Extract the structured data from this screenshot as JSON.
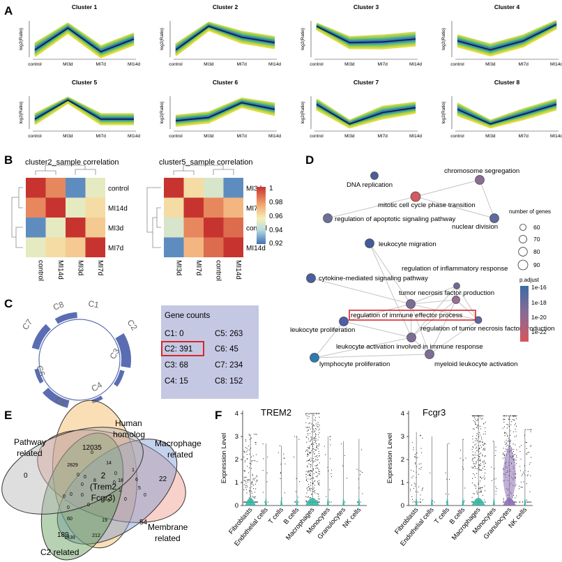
{
  "panel_letters": [
    "A",
    "B",
    "C",
    "D",
    "E",
    "F"
  ],
  "panel_a": {
    "x_ticks": [
      "control",
      "MI3d",
      "MI7d",
      "MI14d"
    ],
    "y_label": "log2(Ratio)",
    "clusters": [
      {
        "title": "Cluster 1",
        "center": [
          0.2,
          0.8,
          0.15,
          0.5
        ],
        "spread": [
          0.35,
          0.25,
          0.3,
          0.3
        ]
      },
      {
        "title": "Cluster 2",
        "center": [
          0.2,
          0.85,
          0.55,
          0.4
        ],
        "spread": [
          0.3,
          0.2,
          0.3,
          0.3
        ]
      },
      {
        "title": "Cluster 3",
        "center": [
          0.85,
          0.4,
          0.42,
          0.5
        ],
        "spread": [
          0.15,
          0.3,
          0.35,
          0.35
        ]
      },
      {
        "title": "Cluster 4",
        "center": [
          0.45,
          0.2,
          0.45,
          0.9
        ],
        "spread": [
          0.3,
          0.3,
          0.3,
          0.2
        ]
      },
      {
        "title": "Cluster 5",
        "center": [
          0.3,
          0.88,
          0.3,
          0.3
        ],
        "spread": [
          0.3,
          0.15,
          0.3,
          0.3
        ]
      },
      {
        "title": "Cluster 6",
        "center": [
          0.25,
          0.35,
          0.8,
          0.6
        ],
        "spread": [
          0.3,
          0.3,
          0.25,
          0.35
        ]
      },
      {
        "title": "Cluster 7",
        "center": [
          0.75,
          0.15,
          0.5,
          0.65
        ],
        "spread": [
          0.3,
          0.2,
          0.35,
          0.3
        ]
      },
      {
        "title": "Cluster 8",
        "center": [
          0.6,
          0.15,
          0.45,
          0.75
        ],
        "spread": [
          0.35,
          0.2,
          0.3,
          0.3
        ]
      }
    ]
  },
  "panel_b": {
    "heatmaps": [
      {
        "title": "cluster2_sample correlation",
        "rows": [
          "control",
          "MI14d",
          "MI3d",
          "MI7d"
        ],
        "cols": [
          "control",
          "MI14d",
          "MI3d",
          "MI7d"
        ],
        "values": [
          [
            1.0,
            0.985,
            0.925,
            0.955
          ],
          [
            0.985,
            1.0,
            0.955,
            0.965
          ],
          [
            0.925,
            0.955,
            1.0,
            0.97
          ],
          [
            0.955,
            0.965,
            0.97,
            1.0
          ]
        ]
      },
      {
        "title": "cluster5_sample correlation",
        "rows": [
          "MI3d",
          "MI7d",
          "control",
          "MI14d"
        ],
        "cols": [
          "MI3d",
          "MI7d",
          "control",
          "MI14d"
        ],
        "values": [
          [
            1.0,
            0.965,
            0.95,
            0.925
          ],
          [
            0.965,
            1.0,
            0.985,
            0.975
          ],
          [
            0.95,
            0.985,
            1.0,
            0.99
          ],
          [
            0.925,
            0.975,
            0.99,
            1.0
          ]
        ]
      }
    ],
    "colorbar_ticks": [
      "1",
      "0.98",
      "0.96",
      "0.94",
      "0.92"
    ]
  },
  "panel_c": {
    "ring_labels": [
      "C1",
      "C2",
      "C3",
      "C4",
      "C5",
      "C6",
      "C7",
      "C8"
    ],
    "gene_counts_title": "Gene counts",
    "gene_counts_left": [
      "C1: 0",
      "C2: 391",
      "C3: 68",
      "C4: 15"
    ],
    "gene_counts_right": [
      "C5: 263",
      "C6: 45",
      "C7: 234",
      "C8: 152"
    ],
    "counts": [
      0,
      391,
      68,
      15,
      263,
      45,
      234,
      152
    ],
    "highlight": "C2: 391"
  },
  "panel_d": {
    "terms": [
      "DNA replication",
      "chromosome segregation",
      "mitotic cell cycle phase transition",
      "regulation of apoptotic signaling pathway",
      "nuclear division",
      "leukocyte migration",
      "regulation of inflammatory response",
      "cytokine-mediated signaling pathway",
      "tumor necrosis factor production",
      "regulation of immune effector process",
      "leukocyte proliferation",
      "regulation of tumor necrosis factor production",
      "leukocyte activation involved in immune response",
      "lymphocyte proliferation",
      "myeloid leukocyte activation"
    ],
    "highlight_term": "regulation of immune effector process",
    "size_legend_title": "number of genes",
    "size_legend_values": [
      "60",
      "70",
      "80",
      "90"
    ],
    "color_legend_title": "p.adjust",
    "color_legend_values": [
      "1e-16",
      "1e-18",
      "1e-20",
      "1e-22"
    ]
  },
  "panel_e": {
    "set_labels": {
      "human": [
        "Human",
        "homolog"
      ],
      "macro": [
        "Macrophage",
        "related"
      ],
      "membrane": [
        "Membrane",
        "related"
      ],
      "c2": [
        "C2 related"
      ],
      "pathway": [
        "Pathway",
        "related"
      ]
    },
    "unique_counts": {
      "human": "12035",
      "macro": "22",
      "membrane": "54",
      "c2": "189",
      "pathway": "0"
    },
    "center_count": [
      "2",
      "(Trem2",
      "Fcgr3)"
    ],
    "small_counts": [
      "2829",
      "14",
      "0",
      "0",
      "1",
      "8",
      "18",
      "6",
      "5",
      "0",
      "0",
      "0",
      "0",
      "0",
      "0",
      "0",
      "0",
      "0",
      "1",
      "0",
      "60",
      "19",
      "1439",
      "212",
      "0",
      "0"
    ]
  },
  "panel_f": {
    "y_label": "Expression Level",
    "y_ticks": [
      "0",
      "1",
      "2",
      "3",
      "4"
    ],
    "cell_types": [
      "Fibroblasts",
      "Endothelial cells",
      "T cells",
      "B cells",
      "Macrophages",
      "Monocytes",
      "Granulocytes",
      "NK cells"
    ],
    "violins": [
      {
        "gene": "TREM2",
        "density": [
          1800,
          120,
          140,
          160,
          3800,
          200,
          60,
          140
        ],
        "max_level": [
          3.1,
          2.7,
          2.6,
          3.0,
          4.0,
          3.0,
          2.8,
          2.9
        ],
        "mean_level": [
          1.1,
          1.5,
          1.5,
          1.4,
          1.9,
          1.4,
          1.6,
          1.4
        ]
      },
      {
        "gene": "Fcgr3",
        "density": [
          700,
          40,
          90,
          120,
          2800,
          160,
          2600,
          700
        ],
        "max_level": [
          3.2,
          3.0,
          2.7,
          2.9,
          3.9,
          2.8,
          3.9,
          3.3
        ],
        "mean_level": [
          1.5,
          1.2,
          1.4,
          1.6,
          2.0,
          1.5,
          2.1,
          1.6
        ]
      }
    ]
  }
}
